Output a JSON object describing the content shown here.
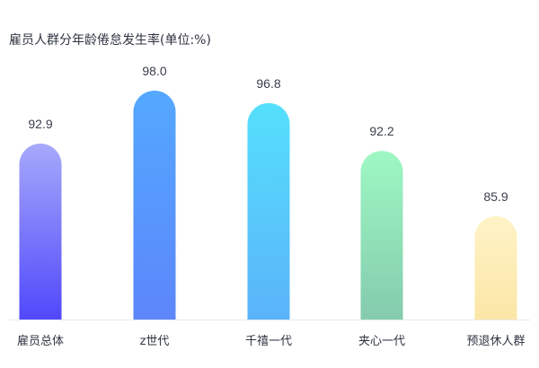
{
  "chart_data": {
    "type": "bar",
    "title": "雇员人群分年龄倦怠发生率(单位:%)",
    "categories": [
      "雇员总体",
      "z世代",
      "千禧一代",
      "夹心一代",
      "预退休人群"
    ],
    "values": [
      92.9,
      98.0,
      96.8,
      92.2,
      85.9
    ],
    "xlabel": "",
    "ylabel": "",
    "grid": false,
    "legend": "none",
    "bar_gradients": [
      {
        "top": "#a6a9fb",
        "bottom": "#5148fb"
      },
      {
        "top": "#53a8ff",
        "bottom": "#5c86fa"
      },
      {
        "top": "#55e0fc",
        "bottom": "#5ab3f9"
      },
      {
        "top": "#9ef8c3",
        "bottom": "#84cbad"
      },
      {
        "top": "#fff3c7",
        "bottom": "#fbe6a6"
      }
    ]
  }
}
